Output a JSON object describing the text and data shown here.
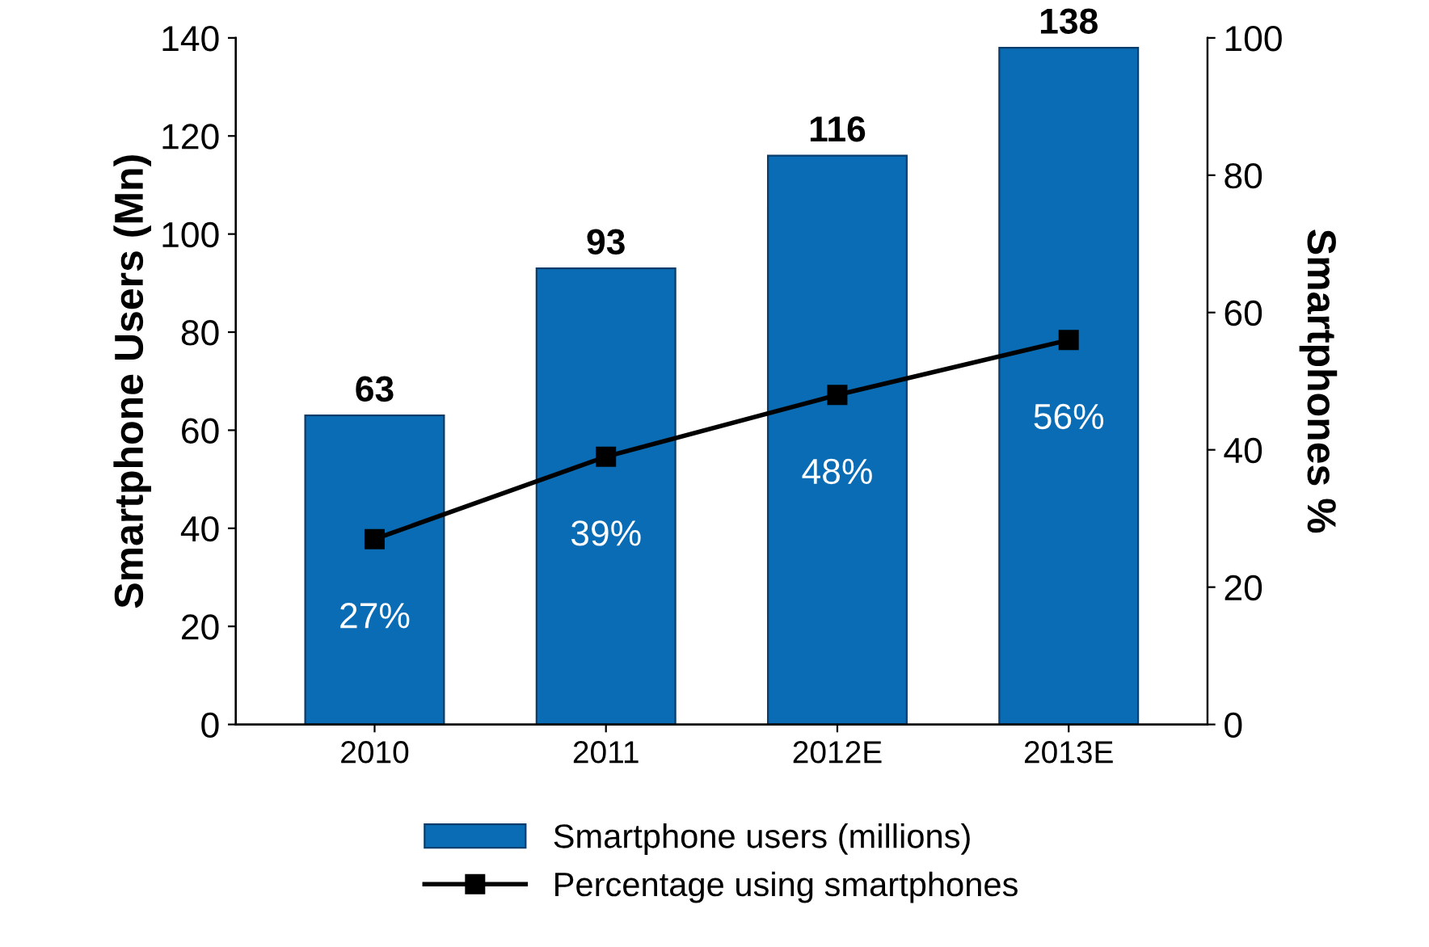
{
  "chart_data": {
    "type": "bar",
    "ylabel": "Smartphone Users (Mn)",
    "y2label": "Smartphones %",
    "categories": [
      "2010",
      "2011",
      "2012E",
      "2013E"
    ],
    "series": [
      {
        "name": "Smartphone users (millions)",
        "color": "#0a6cb4",
        "values": [
          63,
          93,
          116,
          138
        ],
        "data_labels": true
      },
      {
        "name": "Percentage using smartphones",
        "type": "line",
        "axis": "y2",
        "color": "#000000",
        "values": [
          27,
          39,
          48,
          56
        ],
        "value_labels": [
          "27%",
          "39%",
          "48%",
          "56%"
        ],
        "marker": "square",
        "line_style": "solid"
      }
    ],
    "ylim": [
      0,
      140
    ],
    "yticks": [
      0,
      20,
      40,
      60,
      80,
      100,
      120,
      140
    ],
    "y2lim": [
      0,
      100
    ],
    "y2ticks": [
      0,
      20,
      40,
      60,
      80,
      100
    ],
    "grid": false,
    "legend": "bottom"
  }
}
